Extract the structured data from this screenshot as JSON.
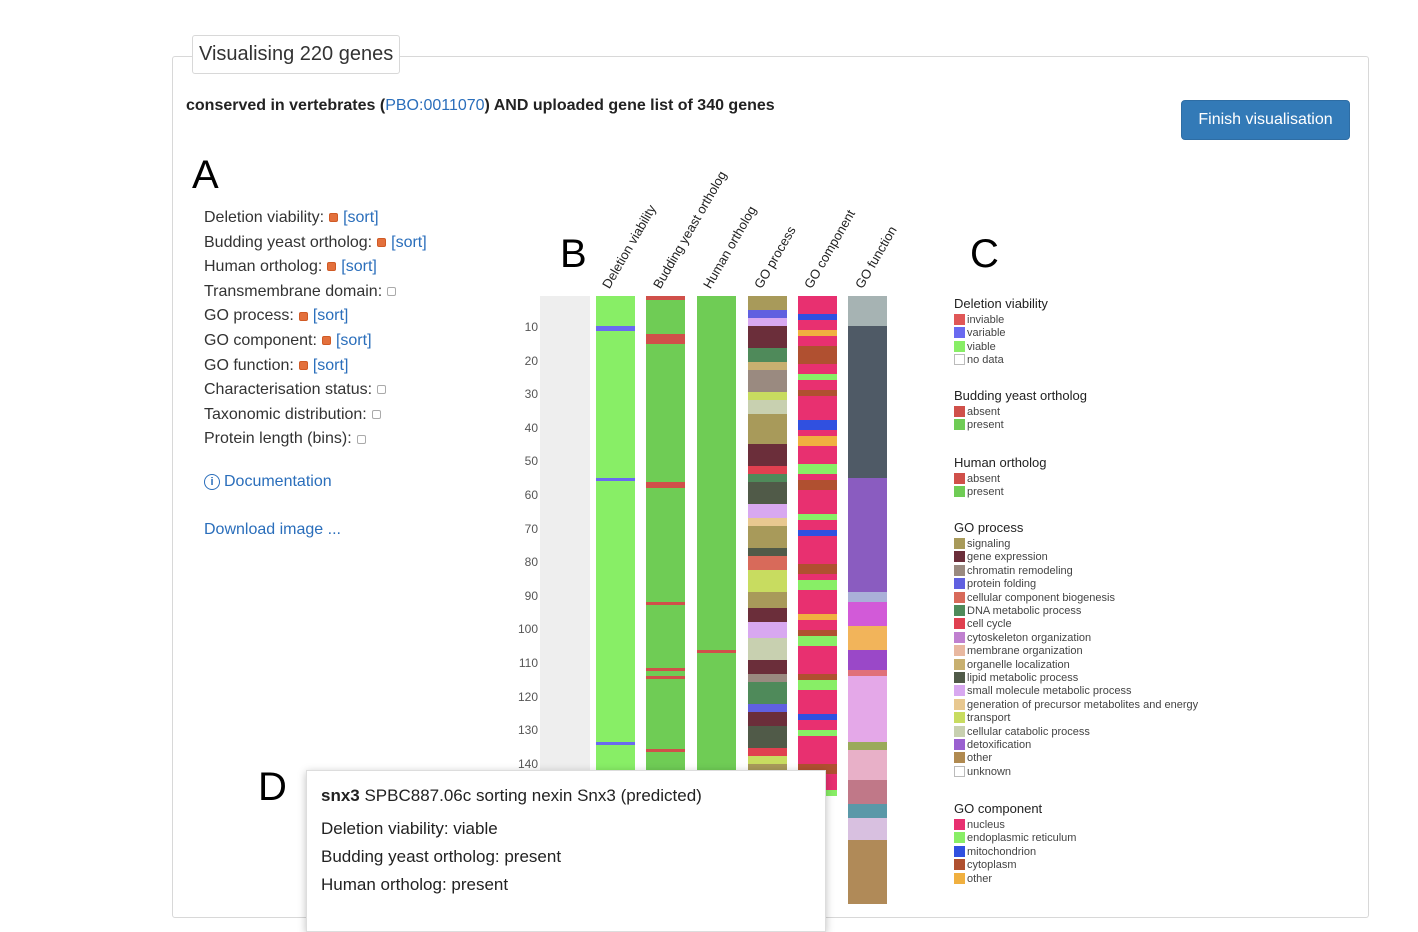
{
  "panel": {
    "title": "Visualising 220 genes"
  },
  "query": {
    "prefix": "conserved in vertebrates (",
    "term_id": "PBO:0011070",
    "suffix": ") AND uploaded gene list of 340 genes"
  },
  "finish_button": "Finish visualisation",
  "labels": {
    "a": "A",
    "b": "B",
    "c": "C",
    "d": "D"
  },
  "options": [
    {
      "label": "Deletion viability:",
      "checked": true,
      "sort": "[sort]"
    },
    {
      "label": "Budding yeast ortholog:",
      "checked": true,
      "sort": "[sort]"
    },
    {
      "label": "Human ortholog:",
      "checked": true,
      "sort": "[sort]"
    },
    {
      "label": "Transmembrane domain:",
      "checked": false,
      "sort": ""
    },
    {
      "label": "GO process:",
      "checked": true,
      "sort": "[sort]"
    },
    {
      "label": "GO component:",
      "checked": true,
      "sort": "[sort]"
    },
    {
      "label": "GO function:",
      "checked": true,
      "sort": "[sort]"
    },
    {
      "label": "Characterisation status:",
      "checked": false,
      "sort": ""
    },
    {
      "label": "Taxonomic distribution:",
      "checked": false,
      "sort": ""
    },
    {
      "label": "Protein length (bins):",
      "checked": false,
      "sort": ""
    }
  ],
  "documentation": "Documentation",
  "download": "Download image ...",
  "columns": [
    "Deletion viability",
    "Budding yeast ortholog",
    "Human ortholog",
    "GO process",
    "GO component",
    "GO function"
  ],
  "row_ticks": [
    "10",
    "20",
    "30",
    "40",
    "50",
    "60",
    "70",
    "80",
    "90",
    "100",
    "110",
    "120",
    "130",
    "140"
  ],
  "legend": [
    {
      "title": "Deletion viability",
      "items": [
        {
          "label": "inviable",
          "color": "#e05757"
        },
        {
          "label": "variable",
          "color": "#6a6af0"
        },
        {
          "label": "viable",
          "color": "#88ee66"
        },
        {
          "label": "no data",
          "color": "#ffffff"
        }
      ]
    },
    {
      "title": "Budding yeast ortholog",
      "items": [
        {
          "label": "absent",
          "color": "#d0504a"
        },
        {
          "label": "present",
          "color": "#6fcc55"
        }
      ]
    },
    {
      "title": "Human ortholog",
      "items": [
        {
          "label": "absent",
          "color": "#d0504a"
        },
        {
          "label": "present",
          "color": "#6fcc55"
        }
      ]
    },
    {
      "title": "GO process",
      "items": [
        {
          "label": "signaling",
          "color": "#a89a5a"
        },
        {
          "label": "gene expression",
          "color": "#6b2e3a"
        },
        {
          "label": "chromatin remodeling",
          "color": "#9a8a80"
        },
        {
          "label": "protein folding",
          "color": "#6060e0"
        },
        {
          "label": "cellular component biogenesis",
          "color": "#d86a5a"
        },
        {
          "label": "DNA metabolic process",
          "color": "#4f8a5a"
        },
        {
          "label": "cell cycle",
          "color": "#e04050"
        },
        {
          "label": "cytoskeleton organization",
          "color": "#c080d0"
        },
        {
          "label": "membrane organization",
          "color": "#e8b8a0"
        },
        {
          "label": "organelle localization",
          "color": "#c8b070"
        },
        {
          "label": "lipid metabolic process",
          "color": "#505a48"
        },
        {
          "label": "small molecule metabolic process",
          "color": "#d8a8f0"
        },
        {
          "label": "generation of precursor metabolites and energy",
          "color": "#e8c890"
        },
        {
          "label": "transport",
          "color": "#c8dc60"
        },
        {
          "label": "cellular catabolic process",
          "color": "#c8d0b0"
        },
        {
          "label": "detoxification",
          "color": "#9a60d0"
        },
        {
          "label": "other",
          "color": "#b08a50"
        },
        {
          "label": "unknown",
          "color": "#ffffff"
        }
      ]
    },
    {
      "title": "GO component",
      "items": [
        {
          "label": "nucleus",
          "color": "#e83070"
        },
        {
          "label": "endoplasmic reticulum",
          "color": "#88ee66"
        },
        {
          "label": "mitochondrion",
          "color": "#3050e0"
        },
        {
          "label": "cytoplasm",
          "color": "#b05030"
        },
        {
          "label": "other",
          "color": "#f0b040"
        }
      ]
    }
  ],
  "tooltip": {
    "gene_name": "snx3",
    "gene_rest": " SPBC887.06c sorting nexin Snx3 (predicted)",
    "lines": [
      "Deletion viability: viable",
      "Budding yeast ortholog: present",
      "Human ortholog: present"
    ]
  }
}
